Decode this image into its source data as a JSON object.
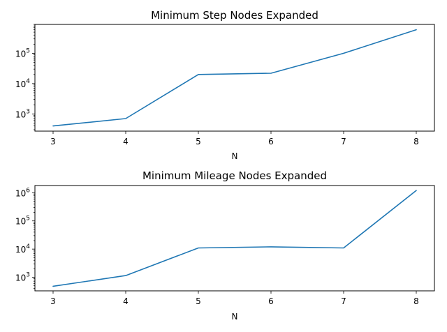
{
  "chart_data": [
    {
      "type": "line",
      "title": "Minimum Step Nodes Expanded",
      "xlabel": "N",
      "ylabel": "",
      "yscale": "log",
      "x": [
        3,
        4,
        5,
        6,
        7,
        8
      ],
      "x_tick_labels": [
        "3",
        "4",
        "5",
        "6",
        "7",
        "8"
      ],
      "y_tick_labels": [
        {
          "base": "10",
          "exp": "3",
          "value": 1000
        },
        {
          "base": "10",
          "exp": "4",
          "value": 10000
        },
        {
          "base": "10",
          "exp": "5",
          "value": 100000
        }
      ],
      "xlim": [
        2.75,
        8.25
      ],
      "ylim": [
        270,
        900000
      ],
      "series": [
        {
          "color": "#1f77b4",
          "values": [
            400,
            700,
            20000,
            22000,
            100000,
            600000
          ]
        }
      ],
      "grid": false,
      "legend": "none"
    },
    {
      "type": "line",
      "title": "Minimum Mileage Nodes Expanded",
      "xlabel": "N",
      "ylabel": "",
      "yscale": "log",
      "x": [
        3,
        4,
        5,
        6,
        7,
        8
      ],
      "x_tick_labels": [
        "3",
        "4",
        "5",
        "6",
        "7",
        "8"
      ],
      "y_tick_labels": [
        {
          "base": "10",
          "exp": "3",
          "value": 1000
        },
        {
          "base": "10",
          "exp": "4",
          "value": 10000
        },
        {
          "base": "10",
          "exp": "5",
          "value": 100000
        },
        {
          "base": "10",
          "exp": "6",
          "value": 1000000
        }
      ],
      "xlim": [
        2.75,
        8.25
      ],
      "ylim": [
        330,
        1800000
      ],
      "series": [
        {
          "color": "#1f77b4",
          "values": [
            480,
            1150,
            11000,
            12000,
            11000,
            1200000
          ]
        }
      ],
      "grid": false,
      "legend": "none"
    }
  ]
}
